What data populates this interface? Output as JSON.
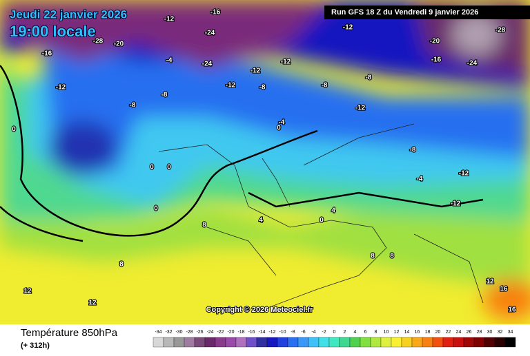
{
  "header": {
    "title": "Jeudi 22 janvier 2026",
    "time": "19:00 locale",
    "run": "Run GFS 18 Z du Vendredi 9 janvier 2026"
  },
  "map": {
    "labels": [
      -28,
      -20,
      -16,
      -12,
      -8,
      -8,
      -4,
      -12,
      -16,
      -24,
      -24,
      -12,
      -12,
      -12,
      -8,
      -8,
      -8,
      -12,
      -20,
      -16,
      -24,
      -28,
      -12,
      -8,
      -12,
      -4,
      -12,
      0,
      0,
      0,
      0,
      -4,
      0,
      4,
      0,
      4,
      8,
      8,
      12,
      12,
      8,
      8,
      12,
      16,
      16
    ],
    "copyright": "Copyright © 2026 Meteociel.fr"
  },
  "footer": {
    "parameter": "Température 850hPa",
    "lead": "(+ 312h)"
  },
  "legend": {
    "ticks": [
      -34,
      -32,
      -30,
      -28,
      -26,
      -24,
      -22,
      -20,
      -18,
      -16,
      -14,
      -12,
      -10,
      -8,
      -6,
      -4,
      -2,
      0,
      2,
      4,
      6,
      8,
      10,
      12,
      14,
      16,
      18,
      20,
      22,
      24,
      26,
      28,
      30,
      32,
      34
    ],
    "colors": [
      "#d8d8d8",
      "#b8b8b8",
      "#989898",
      "#a07aa0",
      "#7a4a7a",
      "#6a2a6a",
      "#8a3a8a",
      "#9a4aa8",
      "#b070c0",
      "#7050c8",
      "#3030a0",
      "#1818c0",
      "#2040e0",
      "#2870f0",
      "#3a98f8",
      "#40c0f8",
      "#40e0e8",
      "#40e8c0",
      "#40d890",
      "#50d050",
      "#80e040",
      "#b0e840",
      "#e0f040",
      "#f8f030",
      "#f8d020",
      "#f8a818",
      "#f88010",
      "#f05010",
      "#e02010",
      "#c81010",
      "#a00808",
      "#800000",
      "#500000",
      "#280000",
      "#000000"
    ]
  }
}
